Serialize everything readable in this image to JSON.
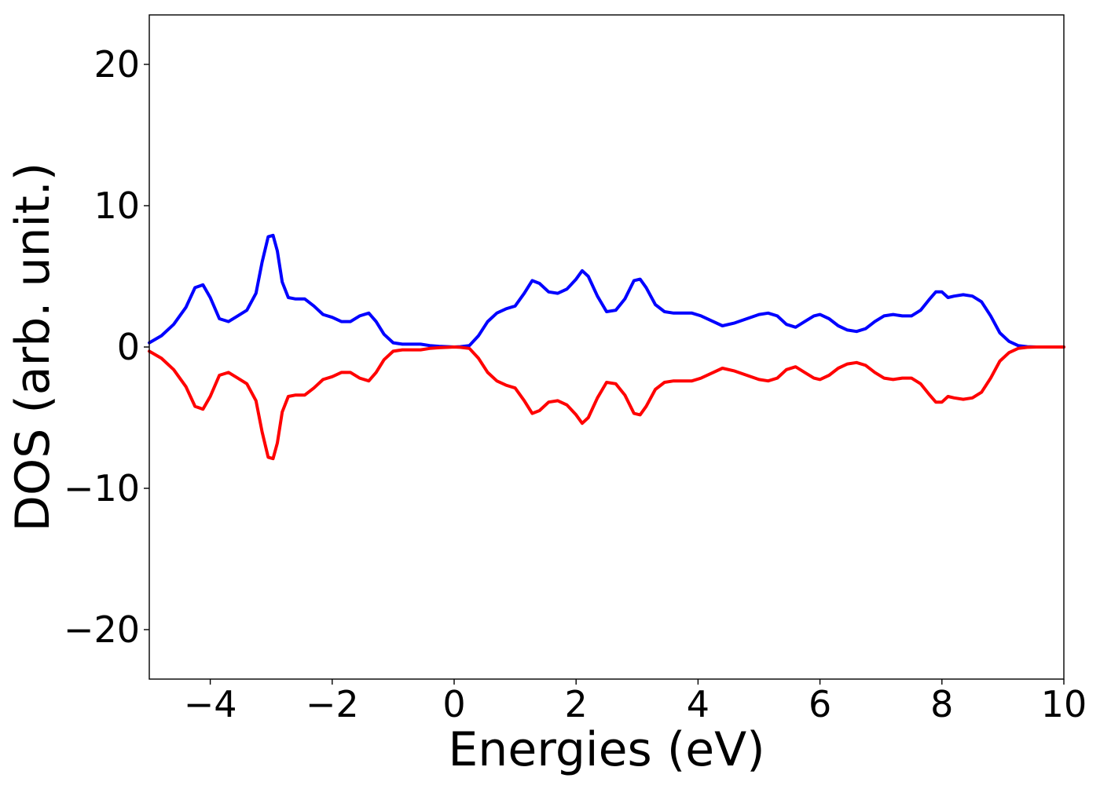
{
  "chart_data": {
    "type": "line",
    "title": "",
    "xlabel": "Energies (eV)",
    "ylabel": "DOS (arb. unit.)",
    "xlim": [
      -5,
      10
    ],
    "ylim": [
      -23.5,
      23.5
    ],
    "x_ticks": [
      -4,
      -2,
      0,
      2,
      4,
      6,
      8,
      10
    ],
    "x_tick_labels": [
      "−4",
      "−2",
      "0",
      "2",
      "4",
      "6",
      "8",
      "10"
    ],
    "y_ticks": [
      -20,
      -10,
      0,
      10,
      20
    ],
    "y_tick_labels": [
      "−20",
      "−10",
      "0",
      "10",
      "20"
    ],
    "grid": false,
    "legend": "none",
    "series": [
      {
        "color": "#0000ff",
        "x": [
          -5.0,
          -4.8,
          -4.6,
          -4.4,
          -4.25,
          -4.12,
          -4.0,
          -3.85,
          -3.7,
          -3.55,
          -3.4,
          -3.25,
          -3.15,
          -3.05,
          -2.97,
          -2.9,
          -2.82,
          -2.72,
          -2.6,
          -2.45,
          -2.3,
          -2.15,
          -2.0,
          -1.85,
          -1.7,
          -1.55,
          -1.4,
          -1.28,
          -1.15,
          -1.0,
          -0.85,
          -0.7,
          -0.55,
          -0.4,
          -0.25,
          -0.1,
          0.0,
          0.1,
          0.25,
          0.4,
          0.55,
          0.7,
          0.85,
          1.0,
          1.15,
          1.28,
          1.4,
          1.55,
          1.7,
          1.85,
          2.0,
          2.1,
          2.2,
          2.35,
          2.5,
          2.65,
          2.8,
          2.95,
          3.05,
          3.15,
          3.3,
          3.45,
          3.6,
          3.75,
          3.9,
          4.05,
          4.2,
          4.4,
          4.6,
          4.8,
          5.0,
          5.15,
          5.3,
          5.45,
          5.6,
          5.75,
          5.9,
          6.0,
          6.15,
          6.3,
          6.45,
          6.6,
          6.75,
          6.9,
          7.05,
          7.2,
          7.35,
          7.5,
          7.65,
          7.8,
          7.9,
          8.0,
          8.1,
          8.2,
          8.35,
          8.5,
          8.65,
          8.8,
          8.95,
          9.1,
          9.25,
          9.4,
          9.55,
          9.7,
          9.85,
          10.0
        ],
        "y": [
          0.3,
          0.8,
          1.6,
          2.8,
          4.2,
          4.4,
          3.5,
          2.0,
          1.8,
          2.2,
          2.6,
          3.8,
          6.0,
          7.8,
          7.9,
          6.8,
          4.6,
          3.5,
          3.4,
          3.4,
          2.9,
          2.3,
          2.1,
          1.8,
          1.8,
          2.2,
          2.4,
          1.8,
          0.9,
          0.3,
          0.2,
          0.2,
          0.2,
          0.1,
          0.05,
          0.02,
          0.0,
          0.02,
          0.1,
          0.8,
          1.8,
          2.4,
          2.7,
          2.9,
          3.8,
          4.7,
          4.5,
          3.9,
          3.8,
          4.1,
          4.8,
          5.4,
          5.0,
          3.6,
          2.5,
          2.6,
          3.4,
          4.7,
          4.8,
          4.2,
          3.0,
          2.5,
          2.4,
          2.4,
          2.4,
          2.2,
          1.9,
          1.5,
          1.7,
          2.0,
          2.3,
          2.4,
          2.2,
          1.6,
          1.4,
          1.8,
          2.2,
          2.3,
          2.0,
          1.5,
          1.2,
          1.1,
          1.3,
          1.8,
          2.2,
          2.3,
          2.2,
          2.2,
          2.6,
          3.4,
          3.9,
          3.9,
          3.5,
          3.6,
          3.7,
          3.6,
          3.2,
          2.2,
          1.0,
          0.4,
          0.1,
          0.02,
          0.0,
          0.0,
          0.0,
          0.0
        ]
      },
      {
        "color": "#ff0000",
        "x": [
          -5.0,
          -4.8,
          -4.6,
          -4.4,
          -4.25,
          -4.12,
          -4.0,
          -3.85,
          -3.7,
          -3.55,
          -3.4,
          -3.25,
          -3.15,
          -3.05,
          -2.97,
          -2.9,
          -2.82,
          -2.72,
          -2.6,
          -2.45,
          -2.3,
          -2.15,
          -2.0,
          -1.85,
          -1.7,
          -1.55,
          -1.4,
          -1.28,
          -1.15,
          -1.0,
          -0.85,
          -0.7,
          -0.55,
          -0.4,
          -0.25,
          -0.1,
          0.0,
          0.1,
          0.25,
          0.4,
          0.55,
          0.7,
          0.85,
          1.0,
          1.15,
          1.28,
          1.4,
          1.55,
          1.7,
          1.85,
          2.0,
          2.1,
          2.2,
          2.35,
          2.5,
          2.65,
          2.8,
          2.95,
          3.05,
          3.15,
          3.3,
          3.45,
          3.6,
          3.75,
          3.9,
          4.05,
          4.2,
          4.4,
          4.6,
          4.8,
          5.0,
          5.15,
          5.3,
          5.45,
          5.6,
          5.75,
          5.9,
          6.0,
          6.15,
          6.3,
          6.45,
          6.6,
          6.75,
          6.9,
          7.05,
          7.2,
          7.35,
          7.5,
          7.65,
          7.8,
          7.9,
          8.0,
          8.1,
          8.2,
          8.35,
          8.5,
          8.65,
          8.8,
          8.95,
          9.1,
          9.25,
          9.4,
          9.55,
          9.7,
          9.85,
          10.0
        ],
        "y": [
          -0.3,
          -0.8,
          -1.6,
          -2.8,
          -4.2,
          -4.4,
          -3.5,
          -2.0,
          -1.8,
          -2.2,
          -2.6,
          -3.8,
          -6.0,
          -7.8,
          -7.9,
          -6.8,
          -4.6,
          -3.5,
          -3.4,
          -3.4,
          -2.9,
          -2.3,
          -2.1,
          -1.8,
          -1.8,
          -2.2,
          -2.4,
          -1.8,
          -0.9,
          -0.3,
          -0.2,
          -0.2,
          -0.2,
          -0.1,
          -0.05,
          -0.02,
          0.0,
          -0.02,
          -0.1,
          -0.8,
          -1.8,
          -2.4,
          -2.7,
          -2.9,
          -3.8,
          -4.7,
          -4.5,
          -3.9,
          -3.8,
          -4.1,
          -4.8,
          -5.4,
          -5.0,
          -3.6,
          -2.5,
          -2.6,
          -3.4,
          -4.7,
          -4.8,
          -4.2,
          -3.0,
          -2.5,
          -2.4,
          -2.4,
          -2.4,
          -2.2,
          -1.9,
          -1.5,
          -1.7,
          -2.0,
          -2.3,
          -2.4,
          -2.2,
          -1.6,
          -1.4,
          -1.8,
          -2.2,
          -2.3,
          -2.0,
          -1.5,
          -1.2,
          -1.1,
          -1.3,
          -1.8,
          -2.2,
          -2.3,
          -2.2,
          -2.2,
          -2.6,
          -3.4,
          -3.9,
          -3.9,
          -3.5,
          -3.6,
          -3.7,
          -3.6,
          -3.2,
          -2.2,
          -1.0,
          -0.4,
          -0.1,
          -0.02,
          0.0,
          0.0,
          0.0,
          0.0
        ]
      }
    ]
  }
}
